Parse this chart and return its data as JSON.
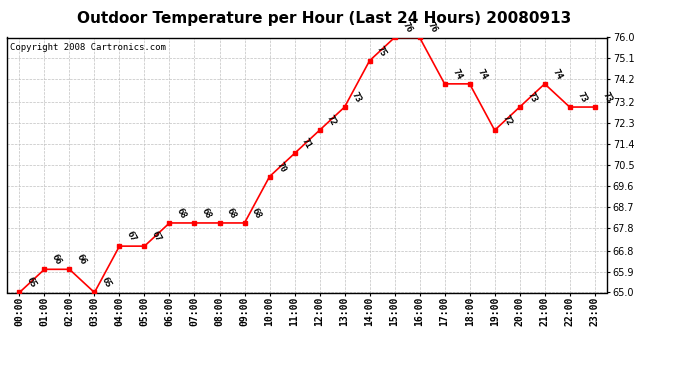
{
  "title": "Outdoor Temperature per Hour (Last 24 Hours) 20080913",
  "copyright": "Copyright 2008 Cartronics.com",
  "hours": [
    "00:00",
    "01:00",
    "02:00",
    "03:00",
    "04:00",
    "05:00",
    "06:00",
    "07:00",
    "08:00",
    "09:00",
    "10:00",
    "11:00",
    "12:00",
    "13:00",
    "14:00",
    "15:00",
    "16:00",
    "17:00",
    "18:00",
    "19:00",
    "20:00",
    "21:00",
    "22:00",
    "23:00"
  ],
  "temps": [
    65,
    66,
    66,
    65,
    67,
    67,
    68,
    68,
    68,
    68,
    70,
    71,
    72,
    73,
    75,
    76,
    76,
    74,
    74,
    72,
    73,
    74,
    73,
    73
  ],
  "ylim": [
    65.0,
    76.0
  ],
  "yticks": [
    65.0,
    65.9,
    66.8,
    67.8,
    68.7,
    69.6,
    70.5,
    71.4,
    72.3,
    73.2,
    74.2,
    75.1,
    76.0
  ],
  "line_color": "red",
  "marker": "s",
  "marker_color": "red",
  "marker_size": 3,
  "grid_color": "#c0c0c0",
  "bg_color": "white",
  "border_color": "black",
  "title_fontsize": 11,
  "label_fontsize": 7,
  "annot_fontsize": 6.5,
  "copyright_fontsize": 6.5
}
